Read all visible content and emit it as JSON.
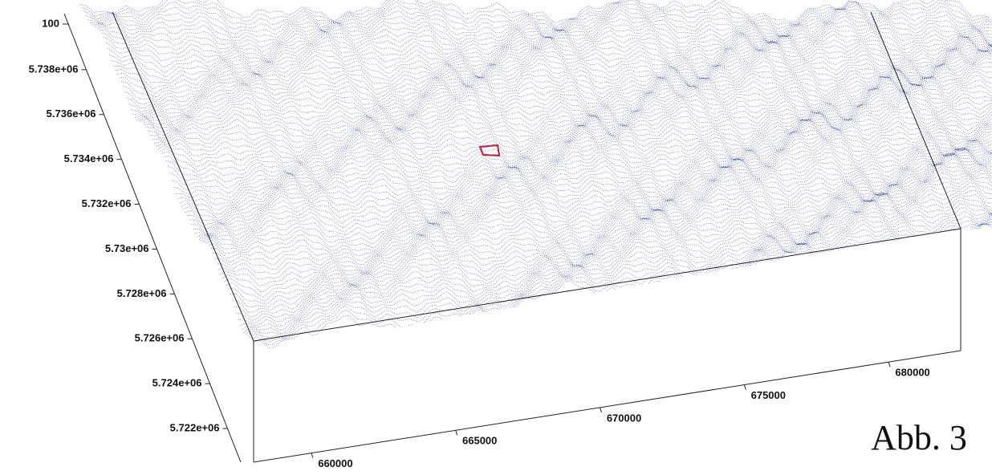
{
  "chart_data": {
    "type": "surface",
    "annotation": "Abb. 3",
    "xlim": [
      658000,
      682500
    ],
    "xticks": [
      660000,
      665000,
      670000,
      675000,
      680000
    ],
    "ylim": [
      5720500,
      5740500
    ],
    "yticks": [
      {
        "value": 5722000,
        "label": "5.722e+06"
      },
      {
        "value": 5724000,
        "label": "5.724e+06"
      },
      {
        "value": 5726000,
        "label": "5.726e+06"
      },
      {
        "value": 5728000,
        "label": "5.728e+06"
      },
      {
        "value": 5730000,
        "label": "5.73e+06"
      },
      {
        "value": 5732000,
        "label": "5.732e+06"
      },
      {
        "value": 5734000,
        "label": "5.734e+06"
      },
      {
        "value": 5736000,
        "label": "5.736e+06"
      },
      {
        "value": 5738000,
        "label": "5.738e+06"
      }
    ],
    "zticks": [
      100
    ],
    "color": "#1c2a8c"
  }
}
